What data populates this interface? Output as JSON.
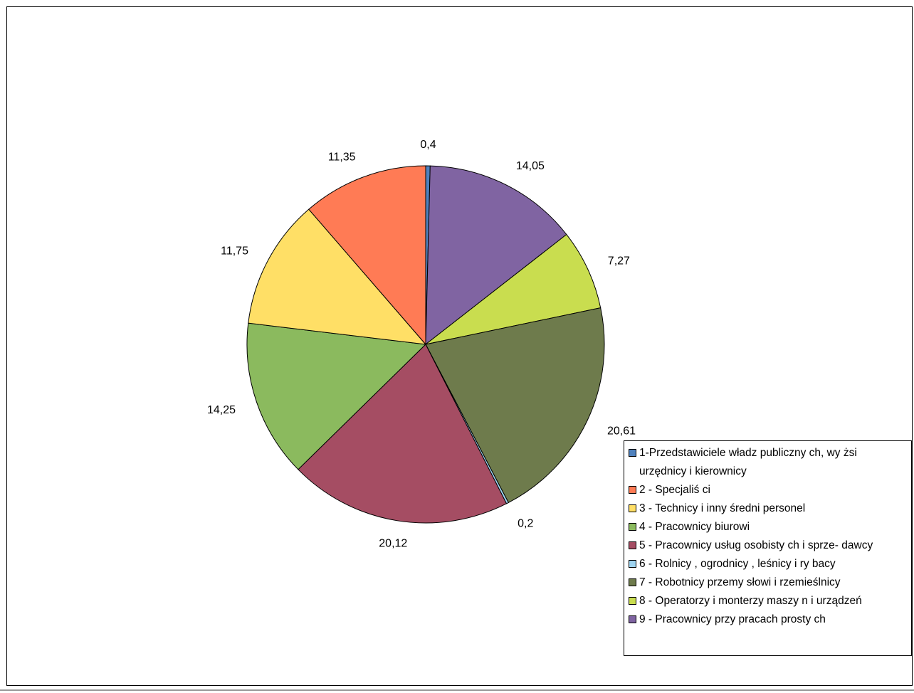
{
  "chart_data": {
    "type": "pie",
    "title": "",
    "slices": [
      {
        "label": "1-Przedstawiciele władz publicznych, wyżsi urzędnicy i kierownicy",
        "legend_text": "1-Przedstawiciele władz publiczny ch, wy żsi urzędnicy  i kierownicy",
        "value": 0.4,
        "value_label": "0,4",
        "color": "#4F81BD"
      },
      {
        "label": "9 - Pracownicy przy pracach prostych",
        "legend_text": "9 - Pracownicy  przy  pracach prosty ch",
        "value": 14.05,
        "value_label": "14,05",
        "color": "#8064A2"
      },
      {
        "label": "8 - Operatorzy i monterzy maszyn i urządzeń",
        "legend_text": "8 - Operatorzy  i monterzy  maszy n i urządzeń",
        "value": 7.27,
        "value_label": "7,27",
        "color": "#C9DD4F"
      },
      {
        "label": "7 - Robotnicy przemysłowi i rzemieślnicy",
        "legend_text": "7 - Robotnicy  przemy słowi i rzemieślnicy",
        "value": 20.61,
        "value_label": "20,61",
        "color": "#6E7B4C"
      },
      {
        "label": "6 - Rolnicy, ogrodnicy, leśnicy i rybacy",
        "legend_text": "6 - Rolnicy ,  ogrodnicy ,  leśnicy  i ry bacy",
        "value": 0.2,
        "value_label": "0,2",
        "color": "#9FD4F0"
      },
      {
        "label": "5 - Pracownicy usług osobistych i sprzedawcy",
        "legend_text": "5 - Pracownicy  usług osobisty ch i sprze- dawcy",
        "value": 20.12,
        "value_label": "20,12",
        "color": "#A54D63"
      },
      {
        "label": "4 - Pracownicy biurowi",
        "legend_text": "4 - Pracownicy  biurowi",
        "value": 14.25,
        "value_label": "14,25",
        "color": "#8BBA5E"
      },
      {
        "label": "3 - Technicy i inny średni personel",
        "legend_text": "3 - Technicy  i inny  średni personel",
        "value": 11.75,
        "value_label": "11,75",
        "color": "#FFDF66"
      },
      {
        "label": "2 - Specjaliści",
        "legend_text": "2 - Specjaliś ci",
        "value": 11.35,
        "value_label": "11,35",
        "color": "#FF7B55"
      }
    ],
    "legend_order": [
      "0",
      "8",
      "7",
      "6",
      "5",
      "4",
      "3",
      "2",
      "1"
    ],
    "legend_placement": "bottom-right",
    "start_angle": "top, clockwise"
  }
}
